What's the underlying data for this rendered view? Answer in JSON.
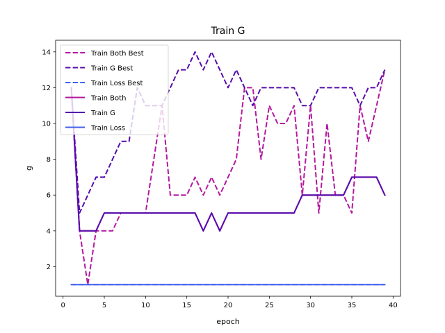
{
  "chart_data": {
    "type": "line",
    "title": "Train G",
    "xlabel": "epoch",
    "ylabel": "g",
    "xlim": [
      -0.9,
      40.9
    ],
    "ylim": [
      0.35,
      14.65
    ],
    "xticks": [
      0,
      5,
      10,
      15,
      20,
      25,
      30,
      35,
      40
    ],
    "yticks": [
      2,
      4,
      6,
      8,
      10,
      12,
      14
    ],
    "grid": false,
    "legend_position": "upper-left",
    "x": [
      1,
      2,
      3,
      4,
      5,
      6,
      7,
      8,
      9,
      10,
      11,
      12,
      13,
      14,
      15,
      16,
      17,
      18,
      19,
      20,
      21,
      22,
      23,
      24,
      25,
      26,
      27,
      28,
      29,
      30,
      31,
      32,
      33,
      34,
      35,
      36,
      37,
      38,
      39
    ],
    "series": [
      {
        "name": "Train Both Best",
        "color": "#b5179e",
        "dash": "dashed",
        "values": [
          12,
          4,
          1,
          4,
          4,
          4,
          5,
          5,
          5,
          5,
          8,
          11,
          6,
          6,
          6,
          7,
          6,
          7,
          6,
          7,
          8,
          12,
          12,
          8,
          11,
          10,
          10,
          11,
          6,
          11,
          5,
          10,
          6,
          6,
          5,
          11,
          9,
          11,
          13
        ]
      },
      {
        "name": "Train G Best",
        "color": "#560bad",
        "dash": "dashed",
        "values": [
          12,
          5,
          6,
          7,
          7,
          8,
          9,
          9,
          12,
          11,
          11,
          11,
          12,
          13,
          13,
          14,
          13,
          14,
          13,
          12,
          13,
          12,
          11,
          12,
          12,
          12,
          12,
          12,
          11,
          11,
          12,
          12,
          12,
          12,
          12,
          11,
          12,
          12,
          13
        ]
      },
      {
        "name": "Train Loss Best",
        "color": "#4361ee",
        "dash": "dashed",
        "values": [
          1,
          1,
          1,
          1,
          1,
          1,
          1,
          1,
          1,
          1,
          1,
          1,
          1,
          1,
          1,
          1,
          1,
          1,
          1,
          1,
          1,
          1,
          1,
          1,
          1,
          1,
          1,
          1,
          1,
          1,
          1,
          1,
          1,
          1,
          1,
          1,
          1,
          1,
          1
        ]
      },
      {
        "name": "Train Both",
        "color": "#b5179e",
        "dash": "solid",
        "values": [
          12,
          4,
          4,
          4,
          5,
          5,
          5,
          5,
          5,
          5,
          5,
          5,
          5,
          5,
          5,
          5,
          4,
          5,
          4,
          5,
          5,
          5,
          5,
          5,
          5,
          5,
          5,
          5,
          6,
          6,
          6,
          6,
          6,
          6,
          7,
          7,
          7,
          7,
          6
        ]
      },
      {
        "name": "Train G",
        "color": "#560bad",
        "dash": "solid",
        "values": [
          12,
          4,
          4,
          4,
          5,
          5,
          5,
          5,
          5,
          5,
          5,
          5,
          5,
          5,
          5,
          5,
          4,
          5,
          4,
          5,
          5,
          5,
          5,
          5,
          5,
          5,
          5,
          5,
          6,
          6,
          6,
          6,
          6,
          6,
          7,
          7,
          7,
          7,
          6
        ]
      },
      {
        "name": "Train Loss",
        "color": "#4361ee",
        "dash": "solid",
        "values": [
          1,
          1,
          1,
          1,
          1,
          1,
          1,
          1,
          1,
          1,
          1,
          1,
          1,
          1,
          1,
          1,
          1,
          1,
          1,
          1,
          1,
          1,
          1,
          1,
          1,
          1,
          1,
          1,
          1,
          1,
          1,
          1,
          1,
          1,
          1,
          1,
          1,
          1,
          1
        ]
      }
    ]
  }
}
